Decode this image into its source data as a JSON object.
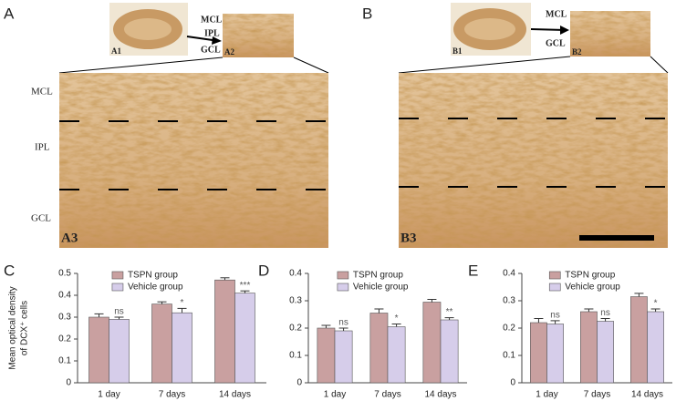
{
  "figure": {
    "panels": [
      "A",
      "B"
    ],
    "layers": [
      "MCL",
      "IPL",
      "GCL"
    ],
    "images": {
      "a1": "A1",
      "a2": "A2",
      "a3": "A3",
      "b1": "B1",
      "b2": "B2",
      "b3": "B3"
    }
  },
  "chart_data": [
    {
      "type": "bar",
      "panel": "C",
      "y_label": [
        "Mean optical density",
        "of DCX⁺ cells"
      ],
      "categories": [
        "1 day",
        "7 days",
        "14 days"
      ],
      "series": [
        {
          "name": "TSPN group",
          "color": "#c9a0a0",
          "values": [
            0.3,
            0.36,
            0.47
          ],
          "errors": [
            0.015,
            0.01,
            0.01
          ]
        },
        {
          "name": "Vehicle group",
          "color": "#d6cdea",
          "values": [
            0.29,
            0.32,
            0.41
          ],
          "errors": [
            0.01,
            0.02,
            0.01
          ]
        }
      ],
      "annotations": [
        "ns",
        "*",
        "***"
      ],
      "ylim": [
        0,
        0.5
      ],
      "yticks": [
        0,
        0.1,
        0.2,
        0.3,
        0.4,
        0.5
      ],
      "legend": "upper left"
    },
    {
      "type": "bar",
      "panel": "D",
      "categories": [
        "1 day",
        "7 days",
        "14 days"
      ],
      "series": [
        {
          "name": "TSPN group",
          "color": "#c9a0a0",
          "values": [
            0.2,
            0.255,
            0.295
          ],
          "errors": [
            0.01,
            0.015,
            0.01
          ]
        },
        {
          "name": "Vehicle group",
          "color": "#d6cdea",
          "values": [
            0.19,
            0.205,
            0.23
          ],
          "errors": [
            0.01,
            0.01,
            0.008
          ]
        }
      ],
      "annotations": [
        "ns",
        "*",
        "**"
      ],
      "ylim": [
        0,
        0.4
      ],
      "yticks": [
        0,
        0.1,
        0.2,
        0.3,
        0.4
      ],
      "legend": "upper left"
    },
    {
      "type": "bar",
      "panel": "E",
      "categories": [
        "1 day",
        "7 days",
        "14 days"
      ],
      "series": [
        {
          "name": "TSPN group",
          "color": "#c9a0a0",
          "values": [
            0.22,
            0.26,
            0.315
          ],
          "errors": [
            0.015,
            0.01,
            0.012
          ]
        },
        {
          "name": "Vehicle group",
          "color": "#d6cdea",
          "values": [
            0.215,
            0.225,
            0.26
          ],
          "errors": [
            0.012,
            0.01,
            0.01
          ]
        }
      ],
      "annotations": [
        "ns",
        "ns",
        "*"
      ],
      "ylim": [
        0,
        0.4
      ],
      "yticks": [
        0,
        0.1,
        0.2,
        0.3,
        0.4
      ],
      "legend": "upper left"
    }
  ]
}
